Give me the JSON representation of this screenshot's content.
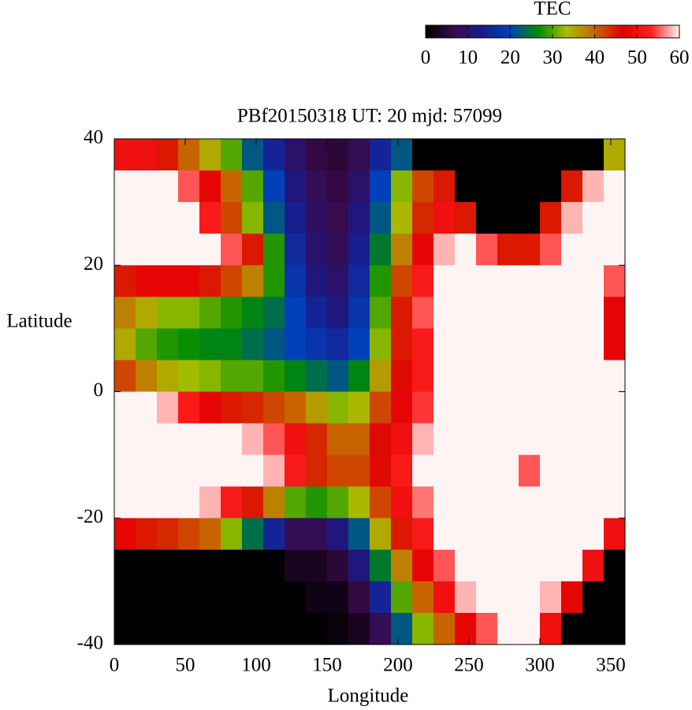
{
  "chart_data": {
    "type": "heatmap",
    "title": "PBf20150318  UT: 20  mjd: 57099",
    "x_label": "Longitude",
    "y_label": "Latitude",
    "xlim": [
      0,
      360
    ],
    "ylim": [
      -40,
      40
    ],
    "xticks": [
      0,
      50,
      100,
      150,
      200,
      250,
      300,
      350
    ],
    "yticks": [
      -40,
      -20,
      0,
      20,
      40
    ],
    "grid": false,
    "colorbar": {
      "label": "TEC",
      "lim": [
        0,
        60
      ],
      "ticks": [
        0,
        10,
        20,
        30,
        40,
        50,
        60
      ]
    },
    "colormap": [
      "#000000",
      "#3a0a4a",
      "#1a1a8a",
      "#0040b8",
      "#008c00",
      "#a8c000",
      "#c86400",
      "#e00000",
      "#ff2020",
      "#fff4f4"
    ],
    "x": [
      7.5,
      22.5,
      37.5,
      52.5,
      67.5,
      82.5,
      97.5,
      112.5,
      127.5,
      142.5,
      157.5,
      172.5,
      187.5,
      202.5,
      217.5,
      232.5,
      247.5,
      262.5,
      277.5,
      292.5,
      307.5,
      322.5,
      337.5,
      352.5
    ],
    "y": [
      37.5,
      32.5,
      27.5,
      22.5,
      17.5,
      12.5,
      7.5,
      2.5,
      -2.5,
      -7.5,
      -12.5,
      -17.5,
      -22.5,
      -27.5,
      -32.5,
      -37.5
    ],
    "values": [
      [
        50,
        50,
        45,
        40,
        35,
        30,
        22,
        15,
        10,
        6,
        5,
        8,
        15,
        22,
        0,
        0,
        0,
        0,
        0,
        0,
        0,
        0,
        0,
        35
      ],
      [
        60,
        60,
        60,
        55,
        48,
        40,
        30,
        20,
        12,
        8,
        6,
        10,
        20,
        32,
        42,
        45,
        0,
        0,
        0,
        0,
        0,
        45,
        58,
        60
      ],
      [
        60,
        60,
        60,
        60,
        52,
        42,
        32,
        22,
        14,
        9,
        7,
        12,
        22,
        34,
        44,
        50,
        45,
        0,
        0,
        0,
        45,
        58,
        60,
        60
      ],
      [
        60,
        60,
        60,
        60,
        60,
        55,
        45,
        28,
        16,
        10,
        8,
        14,
        25,
        38,
        48,
        58,
        60,
        55,
        45,
        45,
        55,
        60,
        60,
        60
      ],
      [
        45,
        48,
        48,
        48,
        45,
        42,
        38,
        28,
        18,
        12,
        10,
        16,
        28,
        42,
        52,
        60,
        60,
        60,
        60,
        60,
        60,
        60,
        60,
        55
      ],
      [
        38,
        35,
        32,
        32,
        30,
        28,
        26,
        24,
        20,
        15,
        12,
        18,
        30,
        45,
        55,
        60,
        60,
        60,
        60,
        60,
        60,
        60,
        60,
        48
      ],
      [
        35,
        30,
        28,
        27,
        26,
        26,
        24,
        22,
        20,
        18,
        16,
        20,
        32,
        45,
        52,
        60,
        60,
        60,
        60,
        60,
        60,
        60,
        60,
        48
      ],
      [
        42,
        38,
        35,
        33,
        32,
        30,
        30,
        28,
        26,
        24,
        22,
        26,
        36,
        46,
        52,
        60,
        60,
        60,
        60,
        60,
        60,
        60,
        60,
        60
      ],
      [
        60,
        60,
        58,
        52,
        48,
        45,
        44,
        42,
        40,
        36,
        32,
        34,
        42,
        48,
        54,
        60,
        60,
        60,
        60,
        60,
        60,
        60,
        60,
        60
      ],
      [
        60,
        60,
        60,
        60,
        60,
        60,
        58,
        55,
        50,
        44,
        40,
        40,
        46,
        50,
        58,
        60,
        60,
        60,
        60,
        60,
        60,
        60,
        60,
        60
      ],
      [
        60,
        60,
        60,
        60,
        60,
        60,
        60,
        58,
        52,
        44,
        42,
        42,
        46,
        52,
        60,
        60,
        60,
        60,
        60,
        55,
        60,
        60,
        60,
        60
      ],
      [
        60,
        60,
        60,
        60,
        58,
        52,
        45,
        38,
        30,
        28,
        30,
        34,
        42,
        50,
        56,
        60,
        60,
        60,
        60,
        60,
        60,
        60,
        60,
        60
      ],
      [
        48,
        45,
        44,
        42,
        40,
        32,
        24,
        15,
        8,
        8,
        12,
        22,
        35,
        45,
        52,
        60,
        60,
        60,
        60,
        60,
        60,
        60,
        60,
        50
      ],
      [
        0,
        0,
        0,
        0,
        0,
        0,
        0,
        0,
        3,
        3,
        5,
        12,
        25,
        38,
        48,
        55,
        60,
        60,
        60,
        60,
        60,
        60,
        50,
        0
      ],
      [
        0,
        0,
        0,
        0,
        0,
        0,
        0,
        0,
        0,
        2,
        2,
        6,
        15,
        30,
        40,
        50,
        58,
        60,
        60,
        60,
        58,
        48,
        0,
        0
      ],
      [
        0,
        0,
        0,
        0,
        0,
        0,
        0,
        0,
        0,
        0,
        1,
        3,
        8,
        22,
        32,
        40,
        48,
        55,
        60,
        60,
        50,
        0,
        0,
        0
      ]
    ]
  }
}
